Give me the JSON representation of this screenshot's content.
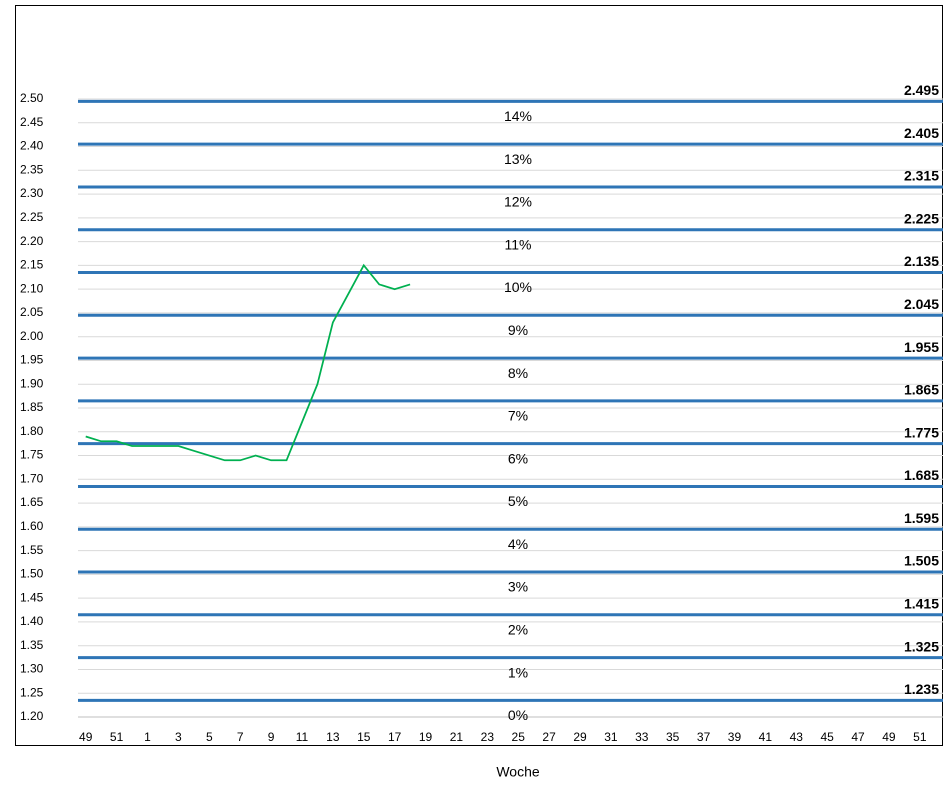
{
  "chart_data": {
    "type": "line",
    "x_label": "Woche",
    "color": "#00b050",
    "grid": true,
    "categories": [
      "49",
      null,
      "51",
      null,
      "1",
      null,
      "3",
      null,
      "5",
      null,
      "7",
      null,
      "9",
      null,
      "11",
      null,
      "13",
      null,
      "15",
      null,
      "17",
      null,
      "19",
      null,
      "21",
      null,
      "23",
      null,
      "25",
      null,
      "27",
      null,
      "29",
      null,
      "31",
      null,
      "33",
      null,
      "35",
      null,
      "37",
      null,
      "39",
      null,
      "41",
      null,
      "43",
      null,
      "45",
      null,
      "47",
      null,
      "49",
      null,
      "51",
      null
    ],
    "values": [
      1.79,
      1.78,
      1.78,
      1.77,
      1.77,
      1.77,
      1.77,
      1.76,
      1.75,
      1.74,
      1.74,
      1.75,
      1.74,
      1.74,
      1.82,
      1.9,
      2.03,
      2.09,
      2.15,
      2.11,
      2.1,
      2.11,
      null,
      null,
      null,
      null,
      null,
      null,
      null,
      null,
      null,
      null,
      null,
      null,
      null,
      null,
      null,
      null,
      null,
      null,
      null,
      null,
      null,
      null,
      null,
      null,
      null,
      null,
      null,
      null,
      null,
      null,
      null,
      null,
      null,
      null
    ],
    "ylim": [
      1.2,
      2.5
    ],
    "yticks": [
      {
        "value": 1.2,
        "label": "1.20"
      },
      1.25,
      {
        "value": 1.3,
        "label": "1.30"
      },
      1.35,
      {
        "value": 1.4,
        "label": "1.40"
      },
      1.45,
      {
        "value": 1.5,
        "label": "1.50"
      },
      1.55,
      {
        "value": 1.6,
        "label": "1.60"
      },
      1.65,
      {
        "value": 1.7,
        "label": "1.70"
      },
      1.75,
      {
        "value": 1.8,
        "label": "1.80"
      },
      1.85,
      {
        "value": 1.9,
        "label": "1.90"
      },
      1.95,
      {
        "value": 2,
        "label": "2.00"
      },
      2.05,
      {
        "value": 2.1,
        "label": "2.10"
      },
      2.15,
      {
        "value": 2.2,
        "label": "2.20"
      },
      2.25,
      {
        "value": 2.3,
        "label": "2.30"
      },
      2.35,
      {
        "value": 2.4,
        "label": "2.40"
      },
      2.45,
      {
        "value": 2.5,
        "label": "2.50"
      }
    ],
    "thresholds": [
      1.235,
      1.325,
      1.415,
      1.505,
      1.595,
      1.685,
      1.775,
      1.865,
      1.955,
      2.045,
      2.135,
      2.225,
      2.315,
      2.405,
      2.495
    ],
    "threshold_color": "#2e75b6",
    "band_labels": [
      "0%",
      "1%",
      "2%",
      "3%",
      "4%",
      "5%",
      "6%",
      "7%",
      "8%",
      "9%",
      "10%",
      "11%",
      "12%",
      "13%",
      "14%"
    ]
  }
}
